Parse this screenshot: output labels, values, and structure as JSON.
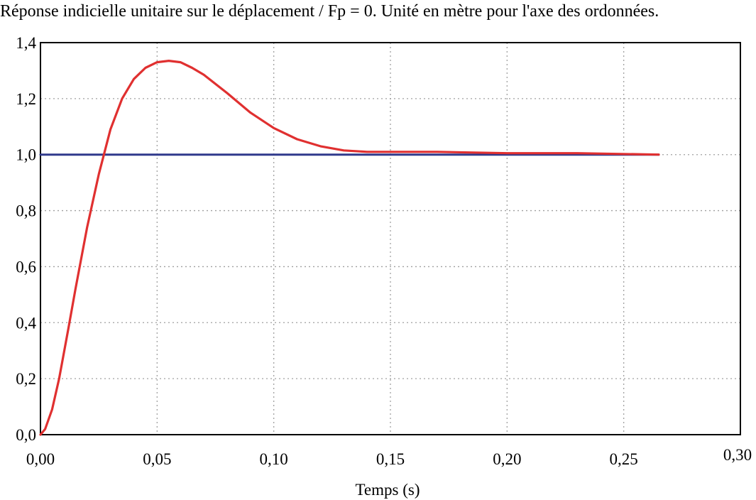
{
  "title": "Réponse indicielle unitaire sur le déplacement / Fp = 0. Unité en mètre pour l'axe des ordonnées.",
  "chart_data": {
    "type": "line",
    "title": "Réponse indicielle unitaire sur le déplacement / Fp = 0. Unité en mètre pour l'axe des ordonnées.",
    "xlabel": "Temps (s)",
    "ylabel": "",
    "xlim": [
      0,
      0.3
    ],
    "ylim": [
      0,
      1.4
    ],
    "x_ticks": [
      0,
      0.05,
      0.1,
      0.15,
      0.2,
      0.25,
      0.3
    ],
    "x_tick_labels": [
      "0,00",
      "0,05",
      "0,10",
      "0,15",
      "0,20",
      "0,25",
      "0,30"
    ],
    "y_ticks": [
      0,
      0.2,
      0.4,
      0.6,
      0.8,
      1.0,
      1.2,
      1.4
    ],
    "y_tick_labels": [
      "0,0",
      "0,2",
      "0,4",
      "0,6",
      "0,8",
      "1,0",
      "1,2",
      "1,4"
    ],
    "grid": true,
    "series": [
      {
        "color": "#e03030",
        "x": [
          0,
          0.002,
          0.005,
          0.008,
          0.012,
          0.015,
          0.02,
          0.025,
          0.03,
          0.035,
          0.04,
          0.045,
          0.05,
          0.055,
          0.06,
          0.065,
          0.07,
          0.08,
          0.09,
          0.1,
          0.11,
          0.12,
          0.13,
          0.14,
          0.15,
          0.17,
          0.2,
          0.23,
          0.265
        ],
        "y": [
          0,
          0.02,
          0.09,
          0.2,
          0.38,
          0.52,
          0.74,
          0.93,
          1.09,
          1.2,
          1.27,
          1.31,
          1.33,
          1.335,
          1.33,
          1.31,
          1.285,
          1.22,
          1.15,
          1.095,
          1.055,
          1.03,
          1.015,
          1.01,
          1.01,
          1.01,
          1.005,
          1.005,
          1.0
        ]
      },
      {
        "color": "#303a8c",
        "x": [
          0,
          0.265
        ],
        "y": [
          1.0,
          1.0
        ]
      }
    ]
  }
}
